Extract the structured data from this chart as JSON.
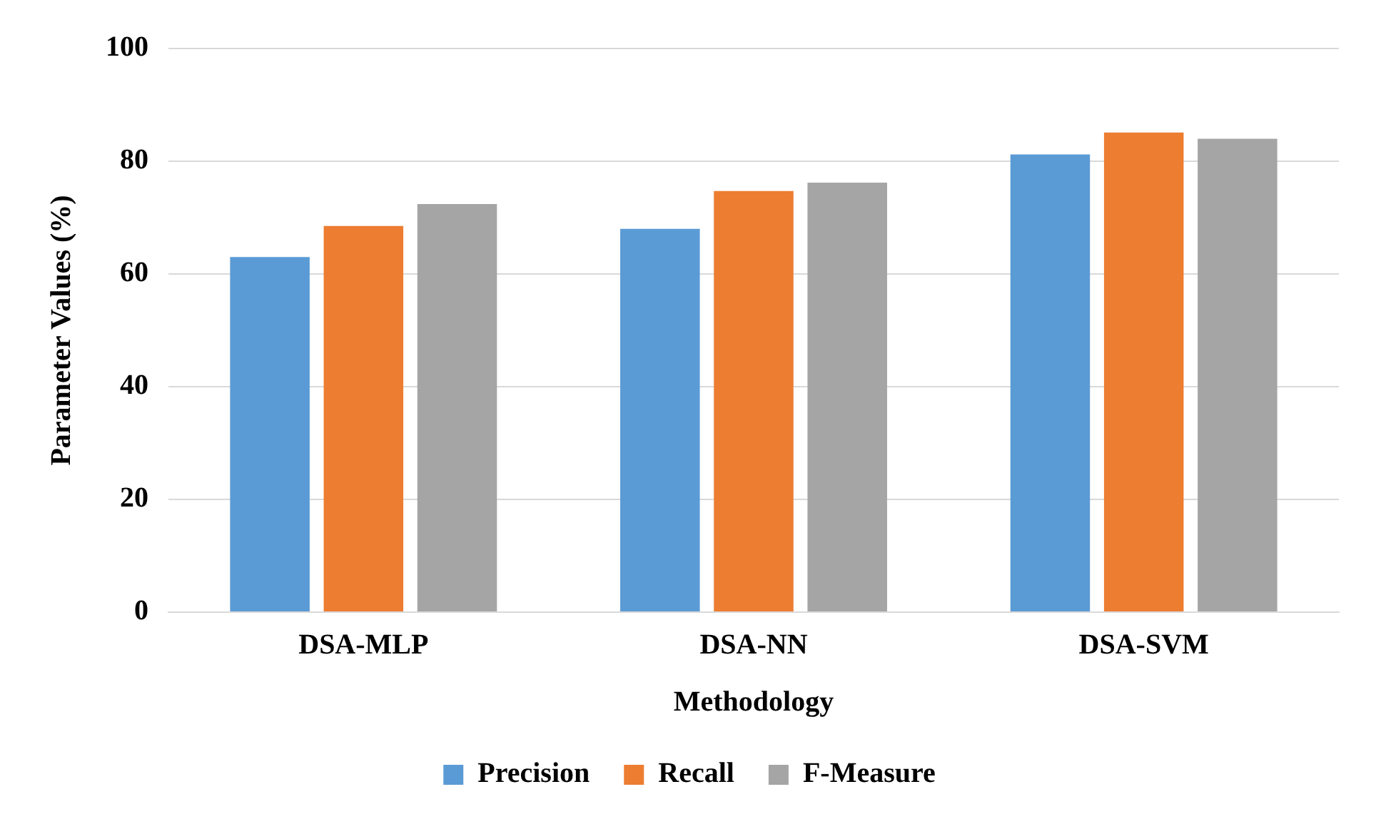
{
  "chart_data": {
    "type": "bar",
    "xlabel": "Methodology",
    "ylabel": "Parameter Values (%)",
    "categories": [
      "DSA-MLP",
      "DSA-NN",
      "DSA-SVM"
    ],
    "series": [
      {
        "name": "Precision",
        "color": "#5b9bd5",
        "values": [
          63,
          68,
          81.2
        ]
      },
      {
        "name": "Recall",
        "color": "#ed7d31",
        "values": [
          68.5,
          74.7,
          85.1
        ]
      },
      {
        "name": "F-Measure",
        "color": "#a5a5a5",
        "values": [
          72.4,
          76.2,
          84
        ]
      }
    ],
    "ylim": [
      0,
      100
    ],
    "yticks": [
      0,
      20,
      40,
      60,
      80,
      100
    ],
    "grid": "y",
    "legend": "bottom"
  }
}
